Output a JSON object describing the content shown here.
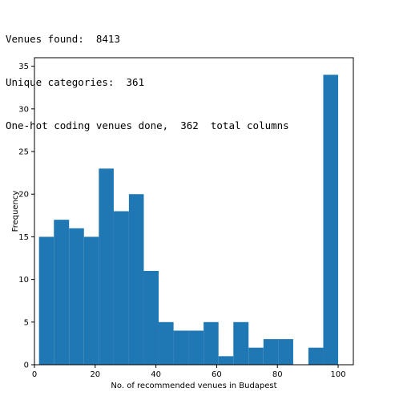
{
  "console": {
    "lines": [
      "Venues found:  8413",
      "Unique categories:  361",
      "One-hot coding venues done,  362  total columns"
    ]
  },
  "chart_data": {
    "type": "bar",
    "title": "",
    "xlabel": "No. of recommended venues in Budapest",
    "ylabel": "Frequency",
    "bar_color": "#1f77b4",
    "xlim": [
      0,
      105
    ],
    "ylim": [
      0,
      36
    ],
    "xticks": [
      0,
      20,
      40,
      60,
      80,
      100
    ],
    "yticks": [
      0,
      5,
      10,
      15,
      20,
      25,
      30,
      35
    ],
    "bins": [
      {
        "x0": 1.5,
        "x1": 6.4,
        "count": 15
      },
      {
        "x0": 6.4,
        "x1": 11.4,
        "count": 17
      },
      {
        "x0": 11.4,
        "x1": 16.3,
        "count": 16
      },
      {
        "x0": 16.3,
        "x1": 21.2,
        "count": 15
      },
      {
        "x0": 21.2,
        "x1": 26.1,
        "count": 23
      },
      {
        "x0": 26.1,
        "x1": 31.1,
        "count": 18
      },
      {
        "x0": 31.1,
        "x1": 36.0,
        "count": 20
      },
      {
        "x0": 36.0,
        "x1": 40.9,
        "count": 11
      },
      {
        "x0": 40.9,
        "x1": 45.8,
        "count": 5
      },
      {
        "x0": 45.8,
        "x1": 50.8,
        "count": 4
      },
      {
        "x0": 50.8,
        "x1": 55.7,
        "count": 4
      },
      {
        "x0": 55.7,
        "x1": 60.6,
        "count": 5
      },
      {
        "x0": 60.6,
        "x1": 65.5,
        "count": 1
      },
      {
        "x0": 65.5,
        "x1": 70.5,
        "count": 5
      },
      {
        "x0": 70.5,
        "x1": 75.4,
        "count": 2
      },
      {
        "x0": 75.4,
        "x1": 80.3,
        "count": 3
      },
      {
        "x0": 80.3,
        "x1": 85.2,
        "count": 3
      },
      {
        "x0": 85.2,
        "x1": 90.2,
        "count": 0
      },
      {
        "x0": 90.2,
        "x1": 95.1,
        "count": 2
      },
      {
        "x0": 95.1,
        "x1": 100.0,
        "count": 34
      }
    ]
  }
}
